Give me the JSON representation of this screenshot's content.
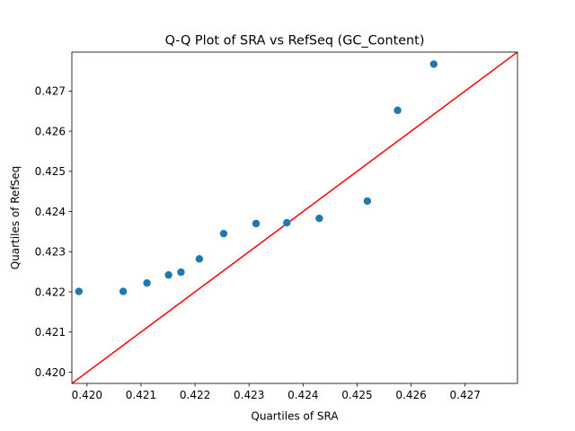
{
  "chart_data": {
    "type": "scatter",
    "title": "Q-Q Plot of SRA vs RefSeq (GC_Content)",
    "xlabel": "Quartiles of SRA",
    "ylabel": "Quartiles of RefSeq",
    "xlim": [
      0.41972,
      0.42797
    ],
    "ylim": [
      0.41972,
      0.42797
    ],
    "xticks": [
      0.42,
      0.421,
      0.422,
      0.423,
      0.424,
      0.425,
      0.426,
      0.427
    ],
    "xtick_labels": [
      "0.420",
      "0.421",
      "0.422",
      "0.423",
      "0.424",
      "0.425",
      "0.426",
      "0.427"
    ],
    "yticks": [
      0.42,
      0.421,
      0.422,
      0.423,
      0.424,
      0.425,
      0.426,
      0.427
    ],
    "ytick_labels": [
      "0.420",
      "0.421",
      "0.422",
      "0.423",
      "0.424",
      "0.425",
      "0.426",
      "0.427"
    ],
    "grid": false,
    "series": [
      {
        "marker_color": "#1f77b4",
        "points": [
          {
            "x": 0.41985,
            "y": 0.42201
          },
          {
            "x": 0.42067,
            "y": 0.42201
          },
          {
            "x": 0.42111,
            "y": 0.42222
          },
          {
            "x": 0.42151,
            "y": 0.42242
          },
          {
            "x": 0.42174,
            "y": 0.42249
          },
          {
            "x": 0.42208,
            "y": 0.42282
          },
          {
            "x": 0.42253,
            "y": 0.42345
          },
          {
            "x": 0.42313,
            "y": 0.4237
          },
          {
            "x": 0.4237,
            "y": 0.42372
          },
          {
            "x": 0.4243,
            "y": 0.42383
          },
          {
            "x": 0.42519,
            "y": 0.42426
          },
          {
            "x": 0.42575,
            "y": 0.42652
          },
          {
            "x": 0.42642,
            "y": 0.42767
          }
        ]
      }
    ],
    "reference_line": {
      "type": "y=x",
      "color": "#ff0000"
    }
  }
}
